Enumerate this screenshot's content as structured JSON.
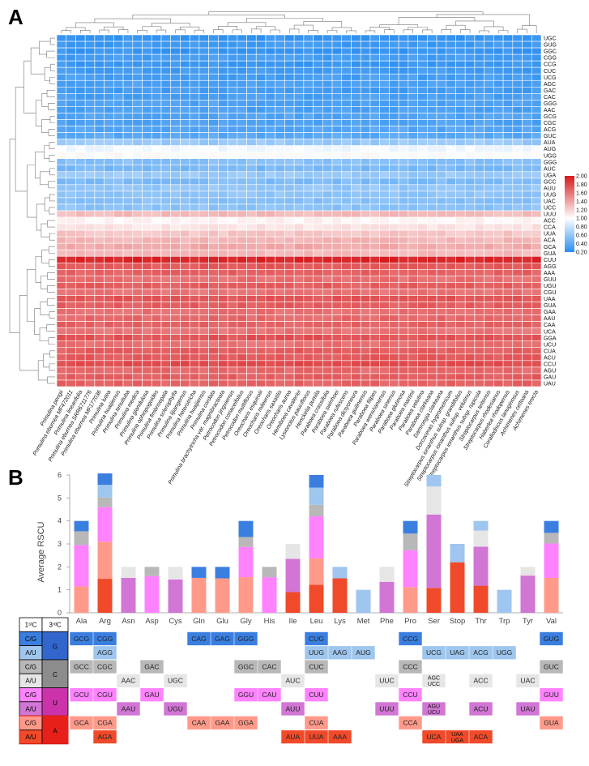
{
  "panels": {
    "a": "A",
    "b": "B"
  },
  "chart_data": [
    {
      "type": "heatmap",
      "title": "",
      "columns": [
        "Primulina pengii",
        "Primulina eburnea MF472011",
        "Primulina linearifolia",
        "Primulina eburnea SRR6711776",
        "Primulina eburnea MF177036",
        "Primulina lutea",
        "Primulina huaijiensis",
        "Primulina tenuituba",
        "Primulina medica",
        "Primulina glandulosa",
        "Primulina ophiopogoides",
        "Primulina fimbrisepala",
        "Primulina sclerophylla",
        "Primulina lijiangensis",
        "Primulina heterotricha",
        "Primulina huaijiensis",
        "Primulina cordata",
        "Primulina brachytricha var. magnibracteata",
        "Petrocodon jingxiensis",
        "Petrocodon coriaceifolius",
        "Petrocodon multiflorus",
        "Oreocharis esquirolii",
        "Oreocharis mileensis",
        "Oreocharis saxatilis",
        "Oreocharis aurea",
        "Hemiboea cavaleriei",
        "Lysionotus pauciflorus",
        "Henckelia pumila",
        "Paraboea crassifolia",
        "Paraboea swinhoei",
        "Paraboea rufescens",
        "Paraboea dictyoneura",
        "Paraboea guilinensis",
        "Paraboea filipes",
        "Paraboea wenshanensis",
        "Paraboea sinensis",
        "Paraboea glutinosa",
        "Paraboea martinii",
        "Paraboea velutina",
        "Paraboea clarkeana",
        "Damrongia clarkeana",
        "Dorcoceras hygrometricum",
        "Streptocarpus ionanthus subsp. grandifolius",
        "Streptocarpus ionanthus subsp. velutinus",
        "Streptocarpus ionanthus subsp. rupicola",
        "Streptocarpus teitensis",
        "Streptocarpus rhodesianus",
        "Haberlea rhodopensis",
        "Corallodiscus lanuginosus",
        "Achimenes cettoana",
        "Achimenes erecta"
      ],
      "rows": [
        "UGC",
        "GUG",
        "GGC",
        "CGG",
        "CCG",
        "CUC",
        "UCG",
        "AGC",
        "GAC",
        "CAC",
        "GGG",
        "AAC",
        "GCG",
        "CGC",
        "ACG",
        "GUC",
        "AUA",
        "AUG",
        "UGG",
        "GGG",
        "AUC",
        "UGA",
        "GCC",
        "AUU",
        "UUG",
        "UAC",
        "UCC",
        "UUU",
        "ACC",
        "CCA",
        "UUA",
        "ACA",
        "GCA",
        "GUA",
        "CUU",
        "AGG",
        "AAA",
        "GUU",
        "UGU",
        "CGU",
        "UAA",
        "GUA",
        "GAA",
        "AAU",
        "CAA",
        "UCA",
        "GGA",
        "UCU",
        "CUA",
        "ACU",
        "CCU",
        "AGU",
        "GAU",
        "UAU"
      ],
      "row_values": [
        0.25,
        0.28,
        0.26,
        0.3,
        0.27,
        0.29,
        0.31,
        0.33,
        0.3,
        0.32,
        0.34,
        0.33,
        0.35,
        0.34,
        0.36,
        0.38,
        0.62,
        0.95,
        1.0,
        0.55,
        0.5,
        0.62,
        0.52,
        0.6,
        0.58,
        0.55,
        0.57,
        1.3,
        1.05,
        1.12,
        1.25,
        1.32,
        1.38,
        1.3,
        1.95,
        1.72,
        1.68,
        1.62,
        1.7,
        1.6,
        1.74,
        1.7,
        1.62,
        1.65,
        1.68,
        1.6,
        1.75,
        1.62,
        1.7,
        1.72,
        1.78,
        1.65,
        1.7,
        1.68
      ],
      "colorbar": {
        "min": 0.2,
        "max": 2.0,
        "ticks": [
          "2.00",
          "1.80",
          "1.60",
          "1.40",
          "1.20",
          "1.00",
          "0.80",
          "0.60",
          "0.40",
          "0.20"
        ],
        "colors": [
          "#2a8ef0",
          "#ffffff",
          "#d7191c"
        ]
      }
    },
    {
      "type": "bar",
      "stacked": true,
      "ylabel": "Average RSCU",
      "ylim": [
        0,
        6
      ],
      "yticks": [
        "0",
        "1",
        "2",
        "3",
        "4",
        "5",
        "6"
      ],
      "categories": [
        "Ala",
        "Arg",
        "Asn",
        "Asp",
        "Cys",
        "Gln",
        "Glu",
        "Gly",
        "His",
        "Ile",
        "Leu",
        "Lys",
        "Met",
        "Phe",
        "Pro",
        "Ser",
        "Stop",
        "Thr",
        "Trp",
        "Tyr",
        "Val"
      ],
      "segment_colors": {
        "GA": "#ff9a8b",
        "AA": "#f04a2a",
        "CG": "#ff82ff",
        "UA": "#d176d4",
        "GC": "#b8b8b8",
        "UC": "#e6e6e6",
        "GG": "#3a7fe0",
        "AG": "#9ec6ee"
      },
      "stacks": [
        [
          [
            "GA",
            1.15
          ],
          [
            "CG",
            1.8
          ],
          [
            "GC",
            0.6
          ],
          [
            "GG",
            0.45
          ]
        ],
        [
          [
            "AA",
            1.48
          ],
          [
            "GA",
            1.62
          ],
          [
            "CG",
            1.5
          ],
          [
            "GC",
            0.42
          ],
          [
            "AG",
            0.55
          ],
          [
            "GG",
            0.5
          ]
        ],
        [
          [
            "UA",
            1.52
          ],
          [
            "UC",
            0.48
          ]
        ],
        [
          [
            "CG",
            1.6
          ],
          [
            "GC",
            0.4
          ]
        ],
        [
          [
            "UA",
            1.45
          ],
          [
            "UC",
            0.55
          ]
        ],
        [
          [
            "GA",
            1.52
          ],
          [
            "GG",
            0.48
          ]
        ],
        [
          [
            "GA",
            1.5
          ],
          [
            "GG",
            0.5
          ]
        ],
        [
          [
            "GA",
            1.55
          ],
          [
            "CG",
            1.32
          ],
          [
            "GC",
            0.43
          ],
          [
            "GG",
            0.7
          ]
        ],
        [
          [
            "CG",
            1.55
          ],
          [
            "GC",
            0.45
          ]
        ],
        [
          [
            "AA",
            0.9
          ],
          [
            "UA",
            1.45
          ],
          [
            "UC",
            0.65
          ]
        ],
        [
          [
            "AA",
            1.22
          ],
          [
            "GA",
            1.15
          ],
          [
            "CG",
            1.83
          ],
          [
            "GC",
            0.5
          ],
          [
            "AG",
            0.75
          ],
          [
            "GG",
            0.55
          ]
        ],
        [
          [
            "AA",
            1.5
          ],
          [
            "AG",
            0.5
          ]
        ],
        [
          [
            "AG",
            1.0
          ]
        ],
        [
          [
            "UA",
            1.35
          ],
          [
            "UC",
            0.65
          ]
        ],
        [
          [
            "GA",
            1.12
          ],
          [
            "CG",
            1.6
          ],
          [
            "GC",
            0.73
          ],
          [
            "GG",
            0.55
          ]
        ],
        [
          [
            "AA",
            1.08
          ],
          [
            "UA",
            3.2
          ],
          [
            "UC",
            1.22
          ],
          [
            "AG",
            0.5
          ]
        ],
        [
          [
            "AA",
            2.2
          ],
          [
            "AG",
            0.8
          ]
        ],
        [
          [
            "AA",
            1.18
          ],
          [
            "UA",
            1.7
          ],
          [
            "UC",
            0.7
          ],
          [
            "AG",
            0.42
          ]
        ],
        [
          [
            "AG",
            1.0
          ]
        ],
        [
          [
            "UA",
            1.62
          ],
          [
            "UC",
            0.38
          ]
        ],
        [
          [
            "GA",
            1.52
          ],
          [
            "CG",
            1.5
          ],
          [
            "GC",
            0.46
          ],
          [
            "GG",
            0.52
          ]
        ]
      ]
    }
  ],
  "codon_table": {
    "header_1st": "1ˢᵗC",
    "header_3rd": "3ʳᵈC",
    "rows": [
      {
        "first": "C/G",
        "group": "G"
      },
      {
        "first": "A/U",
        "group": ""
      },
      {
        "first": "C/G",
        "group": "C"
      },
      {
        "first": "A/U",
        "group": ""
      },
      {
        "first": "C/G",
        "group": "U"
      },
      {
        "first": "A/U",
        "group": ""
      },
      {
        "first": "C/G",
        "group": "A"
      },
      {
        "first": "A/U",
        "group": ""
      }
    ],
    "cells": [
      [
        0,
        0,
        "GCG"
      ],
      [
        0,
        1,
        "CGG"
      ],
      [
        0,
        5,
        "CAG"
      ],
      [
        0,
        6,
        "GAG"
      ],
      [
        0,
        7,
        "GGG"
      ],
      [
        0,
        10,
        "CUG"
      ],
      [
        0,
        14,
        "CCG"
      ],
      [
        0,
        20,
        "GUG"
      ],
      [
        1,
        1,
        "AGG"
      ],
      [
        1,
        10,
        "UUG"
      ],
      [
        1,
        11,
        "AAG"
      ],
      [
        1,
        12,
        "AUG"
      ],
      [
        1,
        15,
        "UCG"
      ],
      [
        1,
        16,
        "UAG"
      ],
      [
        1,
        17,
        "ACG"
      ],
      [
        1,
        18,
        "UGG"
      ],
      [
        2,
        0,
        "GCC"
      ],
      [
        2,
        1,
        "CGC"
      ],
      [
        2,
        3,
        "GAC"
      ],
      [
        2,
        7,
        "GGC"
      ],
      [
        2,
        8,
        "CAC"
      ],
      [
        2,
        10,
        "CUC"
      ],
      [
        2,
        14,
        "CCC"
      ],
      [
        2,
        20,
        "GUC"
      ],
      [
        3,
        2,
        "AAC"
      ],
      [
        3,
        4,
        "UGC"
      ],
      [
        3,
        9,
        "AUC"
      ],
      [
        3,
        13,
        "UUC"
      ],
      [
        3,
        15,
        "AGC\nUCC"
      ],
      [
        3,
        17,
        "ACC"
      ],
      [
        3,
        19,
        "UAC"
      ],
      [
        4,
        0,
        "GCU"
      ],
      [
        4,
        1,
        "CGU"
      ],
      [
        4,
        3,
        "GAU"
      ],
      [
        4,
        7,
        "GGU"
      ],
      [
        4,
        8,
        "CAU"
      ],
      [
        4,
        10,
        "CUU"
      ],
      [
        4,
        14,
        "CCU"
      ],
      [
        4,
        20,
        "GUU"
      ],
      [
        5,
        2,
        "AAU"
      ],
      [
        5,
        4,
        "UGU"
      ],
      [
        5,
        9,
        "AUU"
      ],
      [
        5,
        13,
        "UUU"
      ],
      [
        5,
        15,
        "AGU\nUCU"
      ],
      [
        5,
        17,
        "ACU"
      ],
      [
        5,
        19,
        "UAU"
      ],
      [
        6,
        0,
        "GCA"
      ],
      [
        6,
        1,
        "CGA"
      ],
      [
        6,
        5,
        "CAA"
      ],
      [
        6,
        6,
        "GAA"
      ],
      [
        6,
        7,
        "GGA"
      ],
      [
        6,
        10,
        "CUA"
      ],
      [
        6,
        14,
        "CCA"
      ],
      [
        6,
        20,
        "GUA"
      ],
      [
        7,
        1,
        "AGA"
      ],
      [
        7,
        9,
        "AUA"
      ],
      [
        7,
        10,
        "UUA"
      ],
      [
        7,
        11,
        "AAA"
      ],
      [
        7,
        15,
        "UCA"
      ],
      [
        7,
        16,
        "UAA\nUGA"
      ],
      [
        7,
        17,
        "ACA"
      ]
    ]
  }
}
